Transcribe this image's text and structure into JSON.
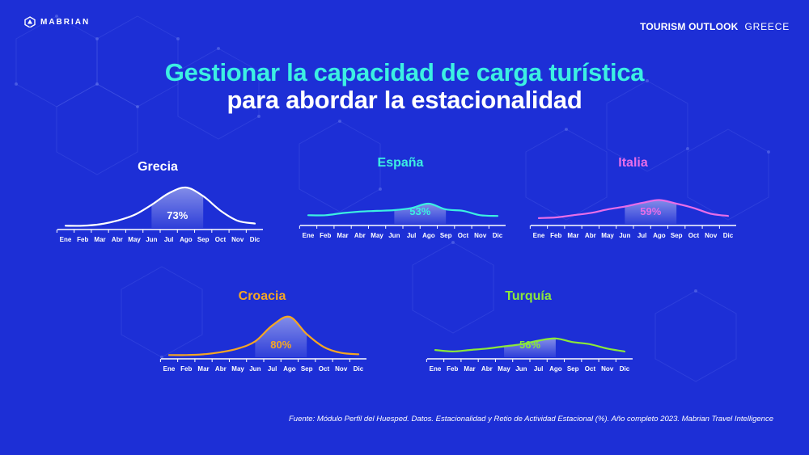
{
  "header": {
    "brand": "MABRIAN",
    "report": "TOURISM OUTLOOK",
    "country": "GREECE"
  },
  "title": {
    "line1": "Gestionar la capacidad de carga turística",
    "line2": "para abordar la estacionalidad"
  },
  "colors": {
    "background": "#1d2fd6",
    "title_accent": "#3cf0e2"
  },
  "chart_data": [
    {
      "type": "area",
      "title": "Grecia",
      "color": "#ffffff",
      "categories": [
        "Ene",
        "Feb",
        "Mar",
        "Abr",
        "May",
        "Jun",
        "Jul",
        "Ago",
        "Sep",
        "Oct",
        "Nov",
        "Dic"
      ],
      "values": [
        1.5,
        1.5,
        2.5,
        5,
        9,
        16,
        24,
        28,
        22,
        12,
        5,
        3
      ],
      "highlight_range": [
        "Jun",
        "Sep"
      ],
      "label": "73%"
    },
    {
      "type": "area",
      "title": "España",
      "color": "#3cf0e2",
      "categories": [
        "Ene",
        "Feb",
        "Mar",
        "Abr",
        "May",
        "Jun",
        "Jul",
        "Ago",
        "Sep",
        "Oct",
        "Nov",
        "Dic"
      ],
      "values": [
        6,
        6,
        7.5,
        8.5,
        9,
        9.5,
        11,
        14,
        10,
        9,
        6,
        5.5
      ],
      "highlight_range": [
        "Jun",
        "Sep"
      ],
      "label": "53%"
    },
    {
      "type": "area",
      "title": "Italia",
      "color": "#e86ee8",
      "categories": [
        "Ene",
        "Feb",
        "Mar",
        "Abr",
        "May",
        "Jun",
        "Jul",
        "Ago",
        "Sep",
        "Oct",
        "Nov",
        "Dic"
      ],
      "values": [
        4,
        4.5,
        6,
        7.5,
        10,
        12,
        14.5,
        16.5,
        14,
        11,
        7,
        5.5
      ],
      "highlight_range": [
        "Jun",
        "Sep"
      ],
      "label": "59%"
    },
    {
      "type": "area",
      "title": "Croacia",
      "color": "#f5a623",
      "categories": [
        "Ene",
        "Feb",
        "Mar",
        "Abr",
        "May",
        "Jun",
        "Jul",
        "Ago",
        "Sep",
        "Oct",
        "Nov",
        "Dic"
      ],
      "values": [
        1.5,
        1.5,
        2,
        3.5,
        6,
        11,
        22,
        28,
        16,
        7,
        3,
        2
      ],
      "highlight_range": [
        "Jun",
        "Sep"
      ],
      "label": "80%"
    },
    {
      "type": "area",
      "title": "Turquía",
      "color": "#8be83a",
      "categories": [
        "Ene",
        "Feb",
        "Mar",
        "Abr",
        "May",
        "Jun",
        "Jul",
        "Ago",
        "Sep",
        "Oct",
        "Nov",
        "Dic"
      ],
      "values": [
        5,
        4,
        5,
        6,
        7.5,
        9,
        11.5,
        13,
        10.5,
        9,
        6,
        4
      ],
      "highlight_range": [
        "May",
        "Ago"
      ],
      "label": "56%"
    }
  ],
  "footer": {
    "source": "Fuente: Módulo Perfil del Huesped. Datos. Estacionalidad y Retio de Actividad Estacional  (%). Año completo 2023. Mabrian Travel Intelligence"
  }
}
